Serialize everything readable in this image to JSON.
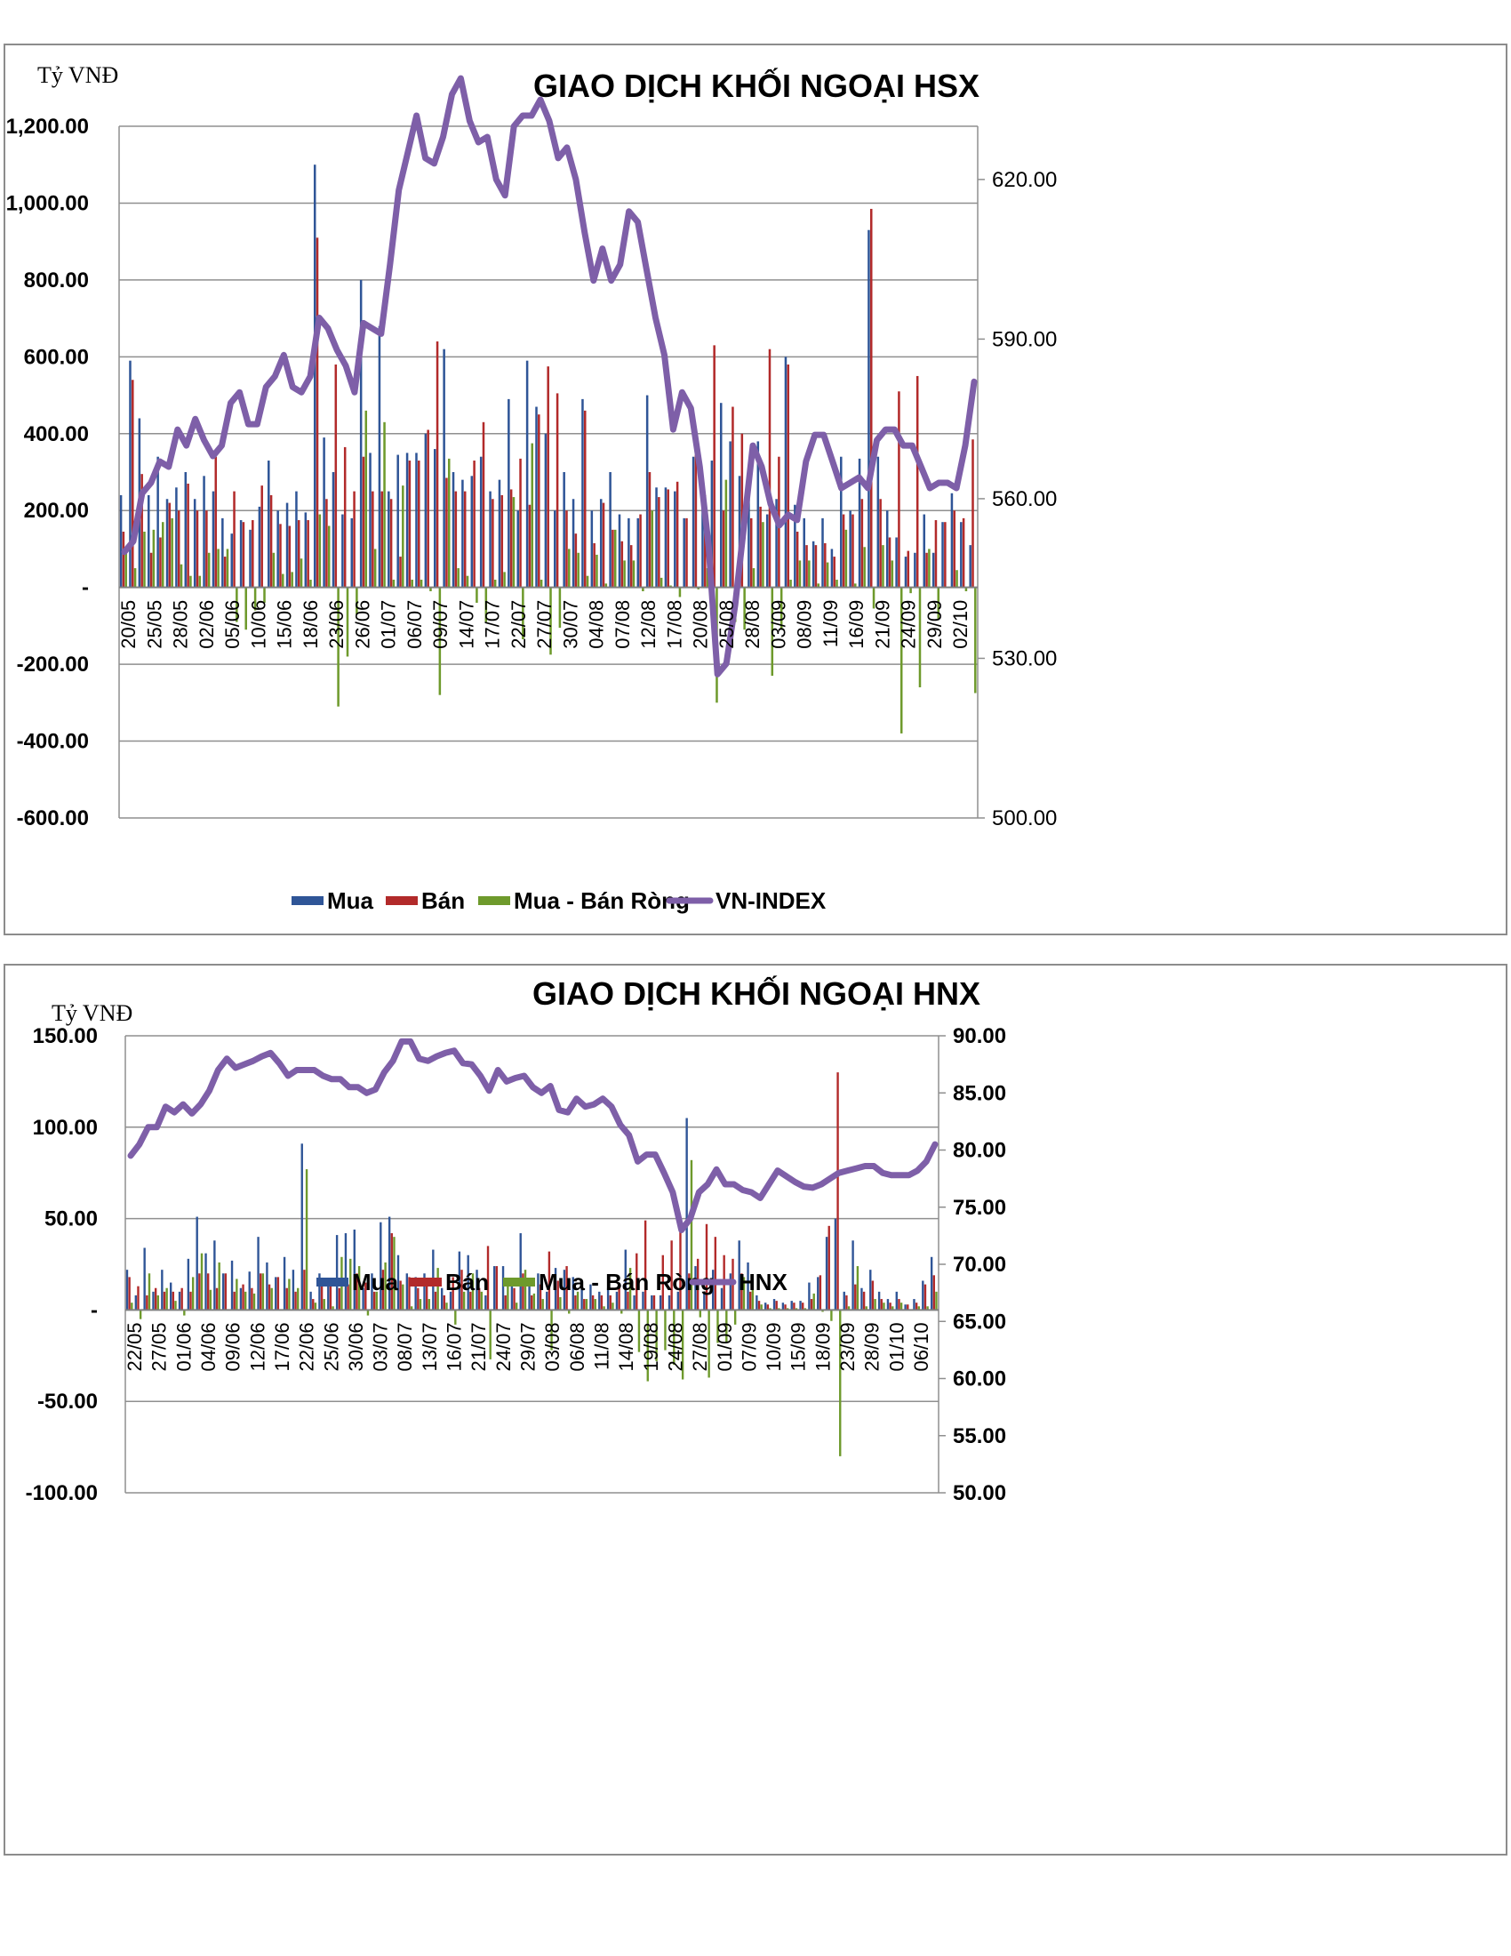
{
  "colors": {
    "buy": "#2f5597",
    "sell": "#b22a2a",
    "net": "#6e9a2c",
    "index": "#7e5fa8",
    "grid": "#8f8f8f"
  },
  "chart_data": [
    {
      "type": "bar",
      "title": "GIAO DỊCH KHỐI NGOẠI HSX",
      "unit_label": "Tỷ VNĐ",
      "ylim": [
        -600,
        1200
      ],
      "y2lim": [
        500,
        630
      ],
      "left_tick_labels": [
        "1,200.00",
        "1,000.00",
        "800.00",
        "600.00",
        "400.00",
        "200.00",
        "-",
        "-200.00",
        "-400.00",
        "-600.00"
      ],
      "right_tick_labels": [
        "620.00",
        "590.00",
        "560.00",
        "530.00",
        "500.00"
      ],
      "right_tick_values": [
        620,
        590,
        560,
        530,
        500
      ],
      "x_tick_labels": [
        "20/05",
        "25/05",
        "28/05",
        "02/06",
        "05/06",
        "10/06",
        "15/06",
        "18/06",
        "23/06",
        "26/06",
        "01/07",
        "06/07",
        "09/07",
        "14/07",
        "17/07",
        "22/07",
        "27/07",
        "30/07",
        "04/08",
        "07/08",
        "12/08",
        "17/08",
        "20/08",
        "25/08",
        "28/08",
        "03/09",
        "08/09",
        "11/09",
        "16/09",
        "21/09",
        "24/09",
        "29/09",
        "02/10"
      ],
      "grid": true,
      "legend_position": "bottom",
      "series": [
        {
          "name": "Mua",
          "type": "bar",
          "values": [
            240,
            590,
            440,
            240,
            340,
            230,
            260,
            300,
            230,
            290,
            250,
            180,
            140,
            175,
            150,
            210,
            330,
            200,
            220,
            250,
            195,
            1100,
            390,
            300,
            190,
            180,
            800,
            350,
            680,
            250,
            345,
            350,
            350,
            400,
            360,
            620,
            300,
            280,
            290,
            340,
            250,
            280,
            490,
            200,
            590,
            470,
            400,
            200,
            300,
            230,
            490,
            200,
            230,
            300,
            190,
            180,
            180,
            500,
            260,
            260,
            250,
            180,
            340,
            290,
            330,
            480,
            380,
            290,
            230,
            380,
            190,
            230,
            600,
            215,
            180,
            120,
            180,
            100,
            340,
            200,
            335,
            930,
            340,
            200,
            130,
            80,
            90,
            190,
            90,
            170,
            245,
            170,
            110
          ]
        },
        {
          "name": "Bán",
          "type": "bar",
          "values": [
            145,
            540,
            295,
            90,
            130,
            220,
            200,
            270,
            200,
            200,
            340,
            80,
            250,
            170,
            175,
            265,
            240,
            165,
            160,
            175,
            175,
            910,
            230,
            580,
            365,
            250,
            340,
            250,
            250,
            230,
            80,
            330,
            330,
            410,
            640,
            285,
            250,
            250,
            330,
            430,
            230,
            240,
            255,
            335,
            215,
            450,
            575,
            505,
            200,
            140,
            460,
            115,
            220,
            150,
            120,
            110,
            190,
            300,
            235,
            255,
            275,
            180,
            345,
            240,
            630,
            200,
            470,
            400,
            180,
            210,
            620,
            340,
            580,
            145,
            110,
            110,
            115,
            80,
            190,
            190,
            230,
            985,
            230,
            130,
            510,
            95,
            550,
            90,
            175,
            170,
            200,
            180,
            385
          ]
        },
        {
          "name": "Mua - Bán Ròng",
          "type": "bar",
          "values": [
            95,
            50,
            145,
            150,
            170,
            180,
            60,
            30,
            30,
            90,
            100,
            100,
            -90,
            -110,
            -60,
            -40,
            90,
            35,
            40,
            75,
            20,
            190,
            160,
            -310,
            -180,
            -70,
            460,
            100,
            430,
            20,
            265,
            20,
            20,
            -10,
            -280,
            335,
            50,
            30,
            -40,
            -90,
            20,
            40,
            235,
            -135,
            375,
            20,
            -175,
            -105,
            100,
            90,
            30,
            85,
            10,
            150,
            70,
            70,
            -10,
            200,
            25,
            5,
            -25,
            0,
            -5,
            50,
            -300,
            280,
            -90,
            -110,
            50,
            170,
            -230,
            -110,
            20,
            70,
            70,
            10,
            65,
            20,
            150,
            10,
            105,
            -55,
            110,
            70,
            -380,
            -15,
            -260,
            100,
            -85,
            0,
            45,
            -10,
            -275
          ]
        },
        {
          "name": "VN-INDEX",
          "type": "line",
          "axis": "right",
          "values": [
            550,
            552,
            561,
            563,
            567,
            566,
            573,
            570,
            575,
            571,
            568,
            570,
            578,
            580,
            574,
            574,
            581,
            583,
            587,
            581,
            580,
            583,
            594,
            592,
            588,
            585,
            580,
            593,
            592,
            591,
            604,
            618,
            625,
            632,
            624,
            623,
            628,
            636,
            639,
            631,
            627,
            628,
            620,
            617,
            630,
            632,
            632,
            635,
            631,
            624,
            626,
            620,
            610,
            601,
            607,
            601,
            604,
            614,
            612,
            603,
            594,
            587,
            573,
            580,
            577,
            566,
            551,
            527,
            529,
            540,
            555,
            570,
            566,
            559,
            555,
            557,
            556,
            567,
            572,
            572,
            567,
            562,
            563,
            564,
            562,
            571,
            573,
            573,
            570,
            570,
            566,
            562,
            563,
            563,
            562,
            570,
            582
          ]
        }
      ]
    },
    {
      "type": "bar",
      "title": "GIAO DỊCH KHỐI NGOẠI HNX",
      "unit_label": "Tỷ VNĐ",
      "ylim": [
        -100,
        150
      ],
      "y2lim": [
        50,
        90
      ],
      "left_tick_labels": [
        "150.00",
        "100.00",
        "50.00",
        "-",
        "-50.00",
        "-100.00"
      ],
      "right_tick_labels": [
        "90.00",
        "85.00",
        "80.00",
        "75.00",
        "70.00",
        "65.00",
        "60.00",
        "55.00",
        "50.00"
      ],
      "right_tick_values": [
        90,
        85,
        80,
        75,
        70,
        65,
        60,
        55,
        50
      ],
      "x_tick_labels": [
        "22/05",
        "27/05",
        "01/06",
        "04/06",
        "09/06",
        "12/06",
        "17/06",
        "22/06",
        "25/06",
        "30/06",
        "03/07",
        "08/07",
        "13/07",
        "16/07",
        "21/07",
        "24/07",
        "29/07",
        "03/08",
        "06/08",
        "11/08",
        "14/08",
        "19/08",
        "24/08",
        "27/08",
        "01/09",
        "07/09",
        "10/09",
        "15/09",
        "18/09",
        "23/09",
        "28/09",
        "01/10",
        "06/10"
      ],
      "grid": true,
      "legend_position": "bottom",
      "series": [
        {
          "name": "Mua",
          "type": "bar",
          "values": [
            22,
            8,
            34,
            10,
            22,
            15,
            10,
            28,
            51,
            31,
            38,
            20,
            27,
            12,
            21,
            40,
            26,
            18,
            29,
            22,
            91,
            10,
            20,
            16,
            41,
            42,
            44,
            12,
            20,
            48,
            51,
            30,
            20,
            18,
            20,
            33,
            12,
            10,
            32,
            30,
            22,
            8,
            24,
            24,
            16,
            42,
            17,
            20,
            10,
            23,
            22,
            18,
            12,
            14,
            10,
            12,
            10,
            33,
            8,
            10,
            8,
            8,
            8,
            10,
            105,
            24,
            10,
            22,
            12,
            20,
            38,
            26,
            8,
            4,
            6,
            4,
            5,
            5,
            15,
            18,
            40,
            50,
            10,
            38,
            12,
            22,
            10,
            6,
            10,
            3,
            6,
            16,
            29
          ]
        },
        {
          "name": "Bán",
          "type": "bar",
          "values": [
            18,
            13,
            8,
            12,
            10,
            10,
            12,
            10,
            20,
            20,
            12,
            20,
            10,
            14,
            12,
            20,
            14,
            18,
            12,
            10,
            22,
            6,
            14,
            14,
            12,
            14,
            20,
            15,
            10,
            22,
            42,
            16,
            18,
            12,
            14,
            10,
            8,
            18,
            22,
            10,
            12,
            35,
            24,
            8,
            12,
            20,
            8,
            14,
            32,
            16,
            24,
            8,
            6,
            8,
            8,
            8,
            12,
            10,
            31,
            49,
            8,
            30,
            38,
            48,
            20,
            28,
            47,
            40,
            30,
            28,
            20,
            10,
            5,
            3,
            5,
            3,
            4,
            4,
            6,
            19,
            46,
            130,
            8,
            14,
            10,
            16,
            6,
            4,
            6,
            3,
            4,
            14,
            19
          ]
        },
        {
          "name": "Mua - Bán Ròng",
          "type": "bar",
          "values": [
            4,
            -5,
            20,
            8,
            12,
            5,
            -3,
            18,
            31,
            11,
            26,
            0,
            17,
            10,
            9,
            20,
            12,
            0,
            17,
            12,
            77,
            4,
            6,
            2,
            29,
            28,
            24,
            -3,
            10,
            26,
            40,
            14,
            2,
            6,
            6,
            23,
            4,
            -8,
            10,
            20,
            10,
            -27,
            0,
            16,
            4,
            22,
            9,
            6,
            -22,
            7,
            -2,
            10,
            6,
            6,
            2,
            4,
            -2,
            23,
            -23,
            -39,
            -28,
            -22,
            -30,
            -38,
            82,
            -4,
            -37,
            -18,
            -18,
            -8,
            18,
            16,
            3,
            1,
            1,
            1,
            1,
            1,
            9,
            -1,
            -6,
            -80,
            2,
            24,
            2,
            6,
            4,
            2,
            4,
            0,
            2,
            2,
            10
          ]
        },
        {
          "name": "HNX",
          "type": "line",
          "axis": "right",
          "values": [
            79.5,
            80.5,
            82,
            82,
            83.8,
            83.3,
            84,
            83.2,
            84,
            85.2,
            87,
            88,
            87.2,
            87.5,
            87.8,
            88.2,
            88.5,
            87.6,
            86.5,
            87,
            87,
            87,
            86.5,
            86.2,
            86.2,
            85.5,
            85.5,
            85,
            85.3,
            86.8,
            87.8,
            89.5,
            89.5,
            88,
            87.8,
            88.2,
            88.5,
            88.7,
            87.6,
            87.5,
            86.5,
            85.2,
            87,
            86,
            86.3,
            86.5,
            85.5,
            85,
            85.6,
            83.5,
            83.3,
            84.5,
            83.8,
            84,
            84.5,
            83.8,
            82.2,
            81.3,
            79,
            79.6,
            79.6,
            78,
            76.3,
            73,
            74,
            76.3,
            77,
            78.3,
            77,
            77,
            76.5,
            76.3,
            75.8,
            77,
            78.2,
            77.7,
            77.2,
            76.8,
            76.7,
            77,
            77.5,
            78,
            78.2,
            78.4,
            78.6,
            78.6,
            78,
            77.8,
            77.8,
            77.8,
            78.2,
            79,
            80.5
          ]
        }
      ]
    }
  ]
}
